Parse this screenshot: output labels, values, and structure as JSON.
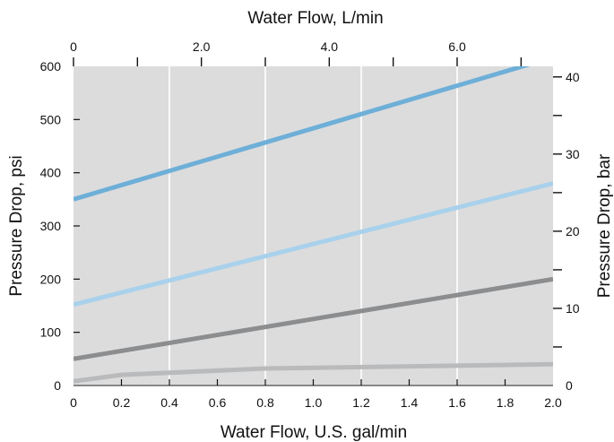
{
  "chart_data": {
    "type": "line",
    "x_top_label": "Water Flow, L/min",
    "xlabel": "Water Flow, U.S. gal/min",
    "ylabel": "Pressure Drop, psi",
    "y2label": "Pressure Drop, bar",
    "xlim": [
      0,
      2.0
    ],
    "ylim": [
      0,
      600
    ],
    "x_top_lim": [
      0,
      7.5
    ],
    "y2lim": [
      0,
      41.37
    ],
    "x_ticks": [
      "0",
      "0.2",
      "0.4",
      "0.6",
      "0.8",
      "1.0",
      "1.2",
      "1.4",
      "1.6",
      "1.8",
      "2.0"
    ],
    "y_ticks": [
      "0",
      "100",
      "200",
      "300",
      "400",
      "500",
      "600"
    ],
    "x_top_ticks": [
      {
        "value": 0,
        "label": "0"
      },
      {
        "value": 1,
        "label": ""
      },
      {
        "value": 2,
        "label": "2.0"
      },
      {
        "value": 3,
        "label": ""
      },
      {
        "value": 4,
        "label": "4.0"
      },
      {
        "value": 5,
        "label": ""
      },
      {
        "value": 6,
        "label": "6.0"
      },
      {
        "value": 7,
        "label": ""
      }
    ],
    "y2_ticks": [
      {
        "value": 0,
        "label": "0"
      },
      {
        "value": 5,
        "label": ""
      },
      {
        "value": 10,
        "label": "10"
      },
      {
        "value": 15,
        "label": ""
      },
      {
        "value": 20,
        "label": "20"
      },
      {
        "value": 25,
        "label": ""
      },
      {
        "value": 30,
        "label": "30"
      },
      {
        "value": 35,
        "label": ""
      },
      {
        "value": 40,
        "label": "40"
      }
    ],
    "grid": true,
    "plot_background": "#dcdcdd",
    "series": [
      {
        "color": "#6eafd8",
        "x": [
          0,
          2.0
        ],
        "y": [
          350,
          617
        ]
      },
      {
        "color": "#a9d1ec",
        "x": [
          0,
          2.0
        ],
        "y": [
          152,
          380
        ]
      },
      {
        "color": "#8c8d8f",
        "x": [
          0,
          2.0
        ],
        "y": [
          50,
          200
        ]
      },
      {
        "color": "#b9babc",
        "x": [
          0,
          0.2,
          0.8,
          2.0
        ],
        "y": [
          8,
          20,
          32,
          40
        ]
      }
    ]
  }
}
